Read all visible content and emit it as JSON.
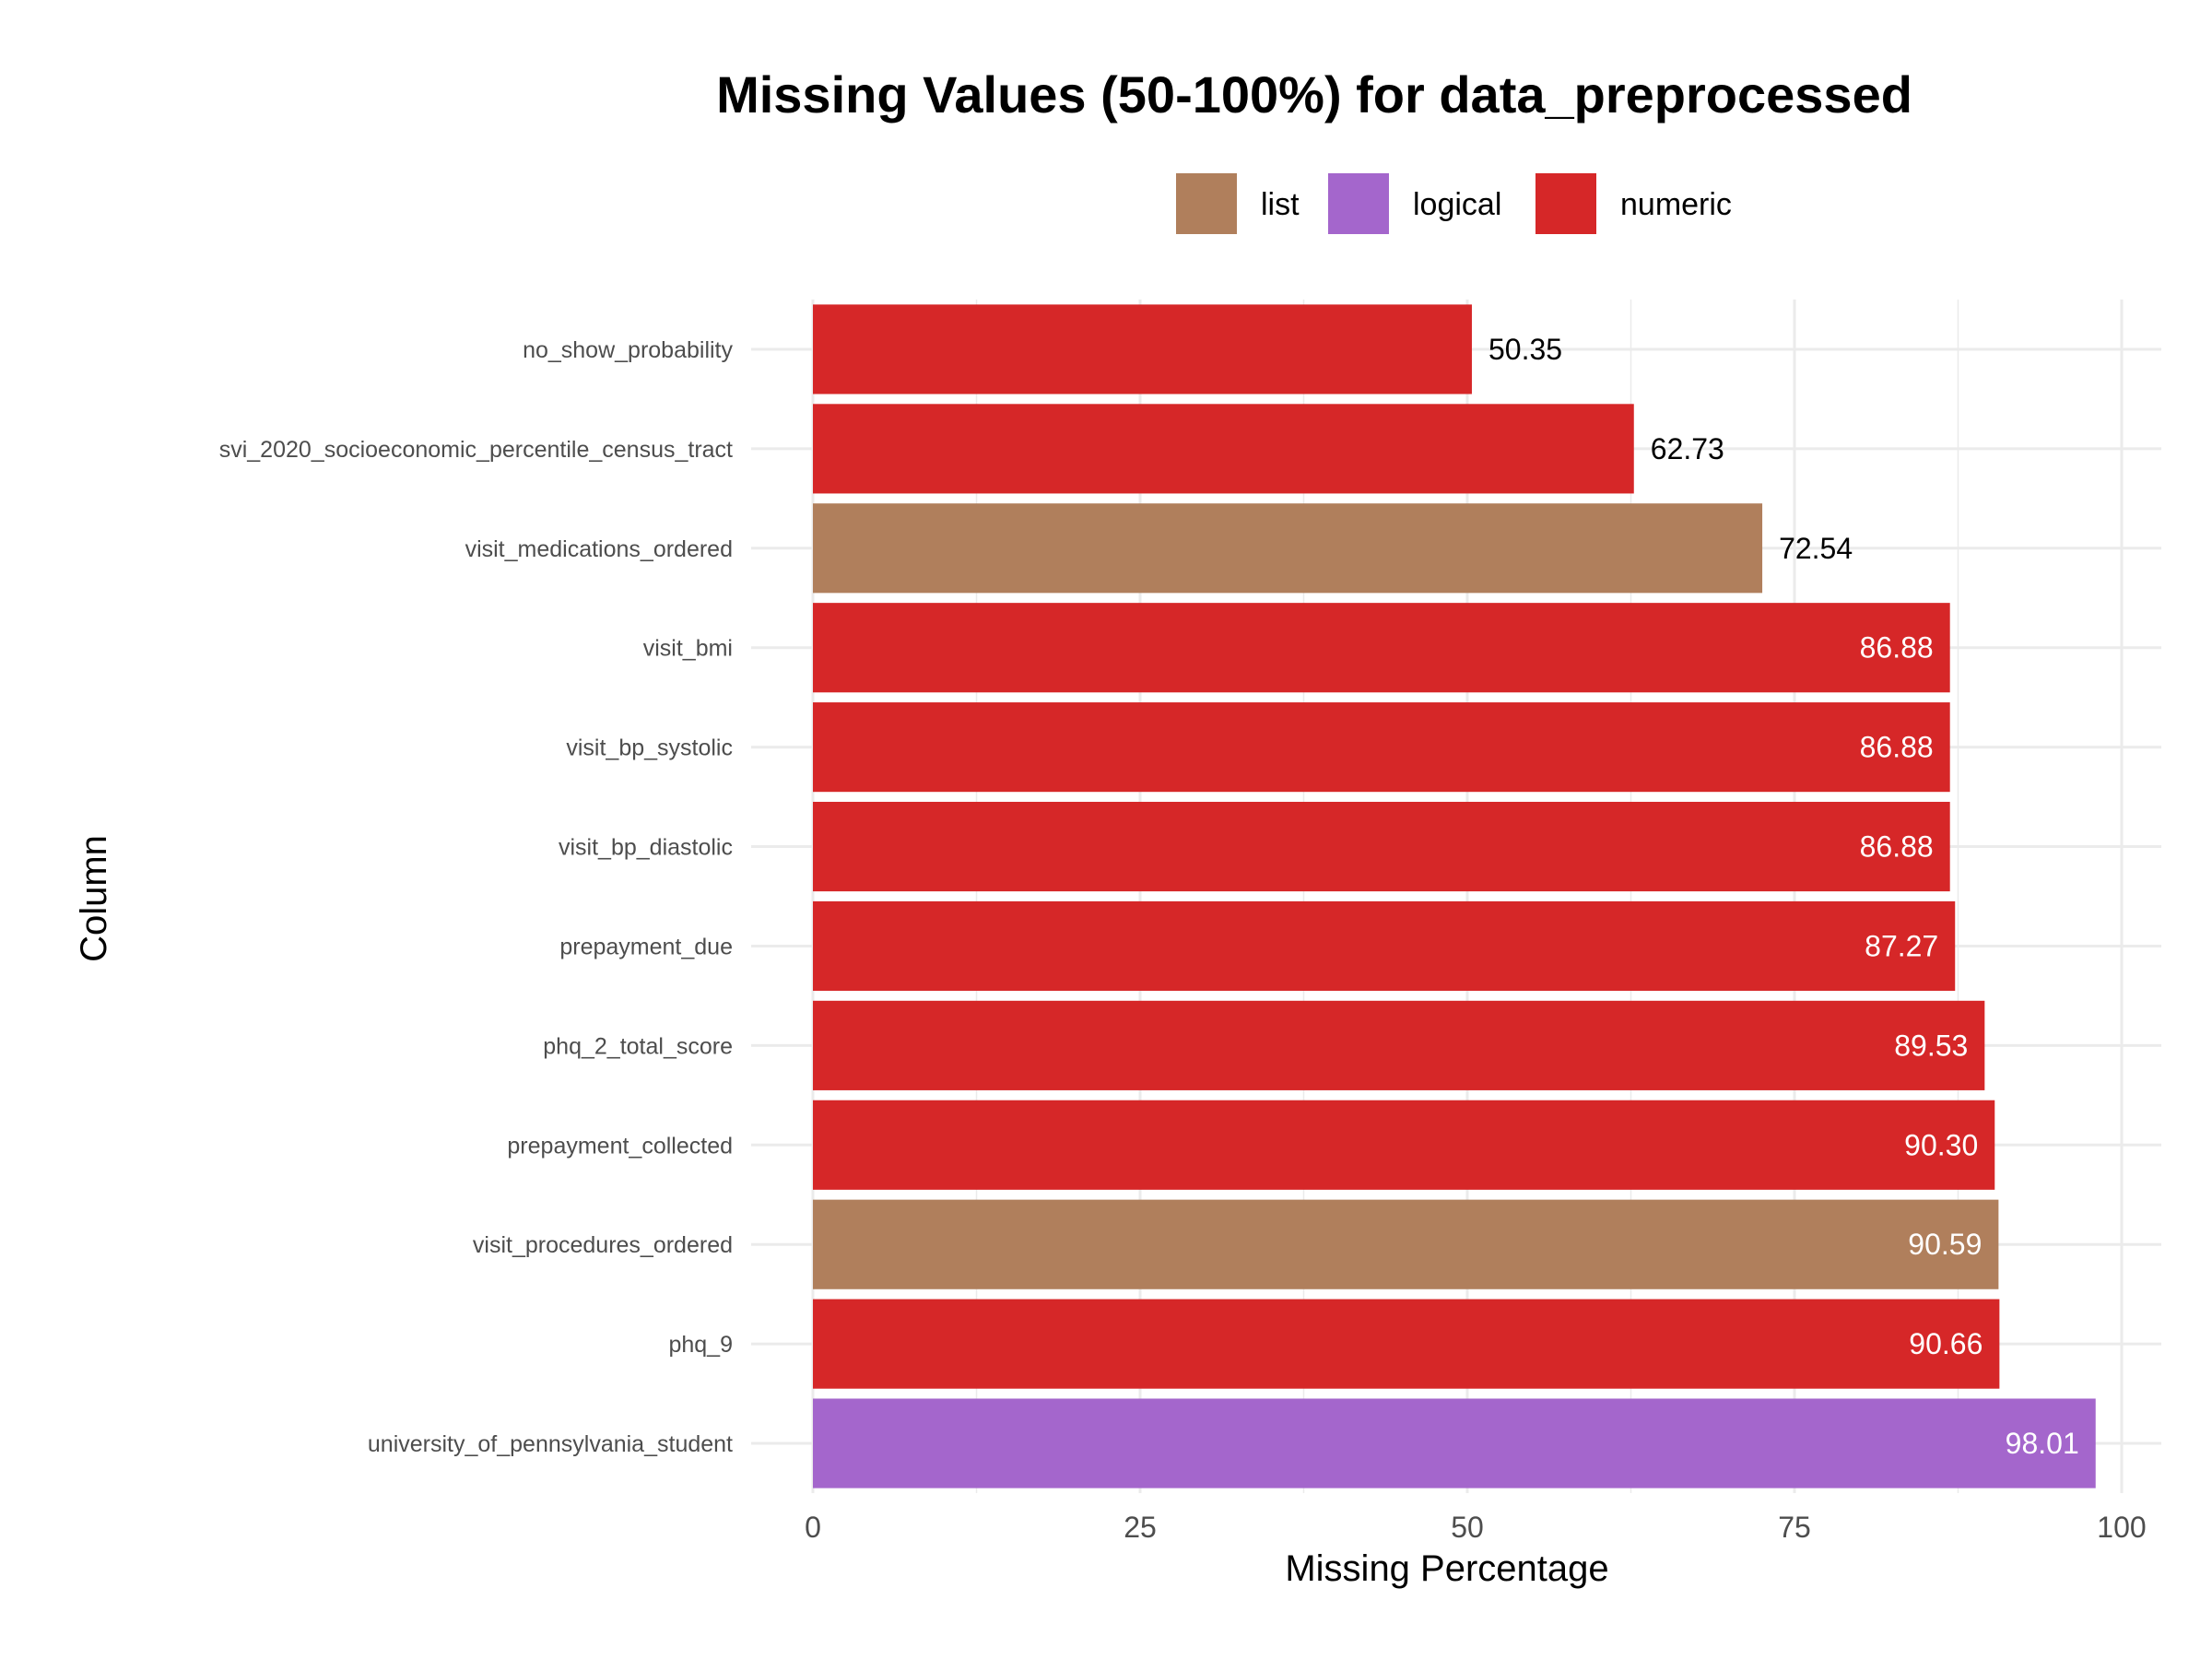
{
  "chart_data": {
    "type": "bar",
    "orientation": "horizontal",
    "title": "Missing Values (50-100%) for data_preprocessed",
    "xlabel": "Missing Percentage",
    "ylabel": "Column",
    "xlim": [
      0,
      100
    ],
    "x_ticks": [
      0,
      25,
      50,
      75,
      100
    ],
    "grid": true,
    "legend_position": "top",
    "legend": [
      {
        "name": "list",
        "color": "#b07f5c"
      },
      {
        "name": "logical",
        "color": "#a466cc"
      },
      {
        "name": "numeric",
        "color": "#d62728"
      }
    ],
    "categories": [
      "no_show_probability",
      "svi_2020_socioeconomic_percentile_census_tract",
      "visit_medications_ordered",
      "visit_bmi",
      "visit_bp_systolic",
      "visit_bp_diastolic",
      "prepayment_due",
      "phq_2_total_score",
      "prepayment_collected",
      "visit_procedures_ordered",
      "phq_9",
      "university_of_pennsylvania_student"
    ],
    "values": [
      50.35,
      62.73,
      72.54,
      86.88,
      86.88,
      86.88,
      87.27,
      89.53,
      90.3,
      90.59,
      90.66,
      98.01
    ],
    "value_labels": [
      "50.35",
      "62.73",
      "72.54",
      "86.88",
      "86.88",
      "86.88",
      "87.27",
      "89.53",
      "90.30",
      "90.59",
      "90.66",
      "98.01"
    ],
    "types": [
      "numeric",
      "numeric",
      "list",
      "numeric",
      "numeric",
      "numeric",
      "numeric",
      "numeric",
      "numeric",
      "list",
      "numeric",
      "logical"
    ]
  }
}
